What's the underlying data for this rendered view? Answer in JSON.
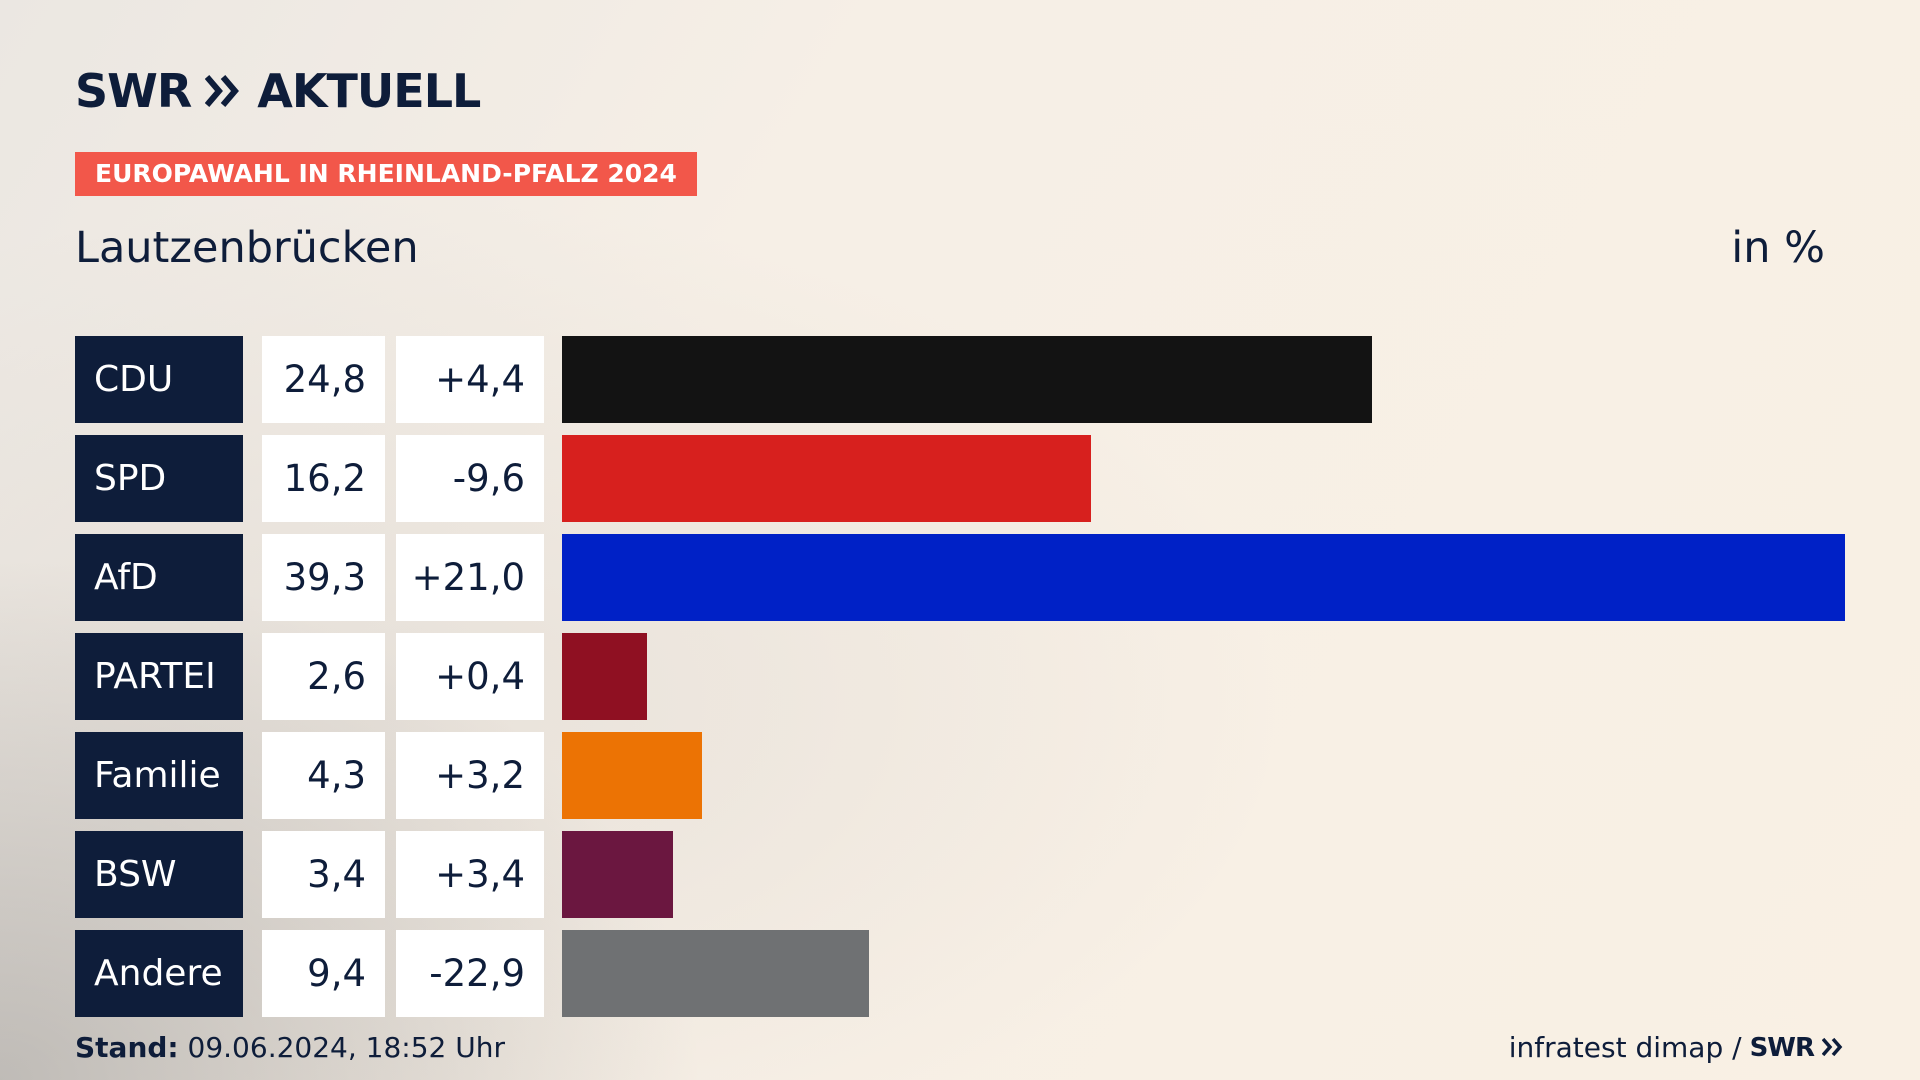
{
  "brand": {
    "swr": "SWR",
    "aktuell": "AKTUELL",
    "arrows_icon": "double-chevron-right-icon"
  },
  "badge": "EUROPAWAHL IN RHEINLAND-PFALZ 2024",
  "place": "Lautzenbrücken",
  "unit": "in %",
  "colors": {
    "navy": "#0e1d3a",
    "badge": "#f2574a"
  },
  "chart_data": {
    "type": "bar",
    "orientation": "horizontal",
    "title": "Lautzenbrücken",
    "unit_label": "in %",
    "categories": [
      "CDU",
      "SPD",
      "AfD",
      "PARTEI",
      "Familie",
      "BSW",
      "Andere"
    ],
    "values": [
      24.8,
      16.2,
      39.3,
      2.6,
      4.3,
      3.4,
      9.4
    ],
    "value_labels": [
      "24,8",
      "16,2",
      "39,3",
      "2,6",
      "4,3",
      "3,4",
      "9,4"
    ],
    "diff_labels": [
      "+4,4",
      "-9,6",
      "+21,0",
      "+0,4",
      "+3,2",
      "+3,4",
      "-22,9"
    ],
    "colors": [
      "#131313",
      "#d7201e",
      "#0021c6",
      "#8f1022",
      "#ec7304",
      "#6b1740",
      "#6f7173"
    ],
    "xlim": [
      0,
      39.3
    ]
  },
  "footer": {
    "stand_label": "Stand:",
    "stand_value": "09.06.2024, 18:52 Uhr",
    "source": "infratest dimap /",
    "source_brand": "SWR"
  }
}
